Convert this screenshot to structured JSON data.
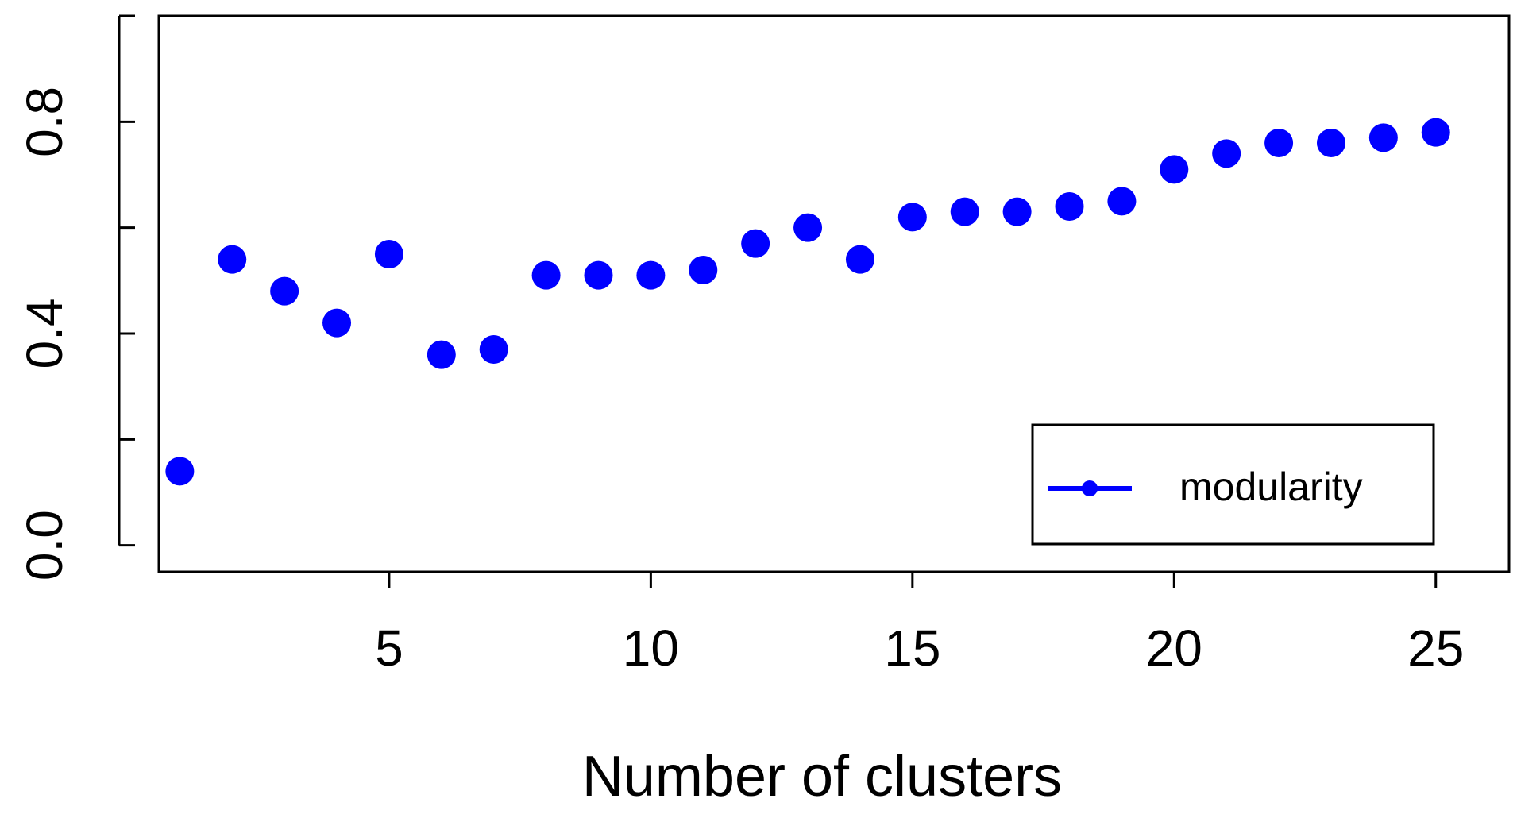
{
  "chart_data": {
    "type": "scatter",
    "title": "",
    "xlabel": "Number of clusters",
    "ylabel": "",
    "xlim": [
      0.6,
      26.4
    ],
    "ylim": [
      -0.05,
      1.0
    ],
    "x_ticks": [
      5,
      10,
      15,
      20,
      25
    ],
    "x_tick_labels": [
      "5",
      "10",
      "15",
      "20",
      "25"
    ],
    "y_ticks": [
      0.0,
      0.2,
      0.4,
      0.6,
      0.8,
      1.0
    ],
    "y_tick_labels": [
      "0.0",
      "",
      "0.4",
      "",
      "0.8",
      ""
    ],
    "grid": false,
    "legend_position": "bottom-right",
    "series": [
      {
        "name": "modularity",
        "color": "#0000ff",
        "x": [
          1,
          2,
          3,
          4,
          5,
          6,
          7,
          8,
          9,
          10,
          11,
          12,
          13,
          14,
          15,
          16,
          17,
          18,
          19,
          20,
          21,
          22,
          23,
          24,
          25
        ],
        "values": [
          0.14,
          0.54,
          0.48,
          0.42,
          0.55,
          0.36,
          0.37,
          0.51,
          0.51,
          0.51,
          0.52,
          0.57,
          0.6,
          0.54,
          0.62,
          0.63,
          0.63,
          0.64,
          0.65,
          0.71,
          0.74,
          0.76,
          0.76,
          0.77,
          0.78
        ]
      }
    ]
  }
}
